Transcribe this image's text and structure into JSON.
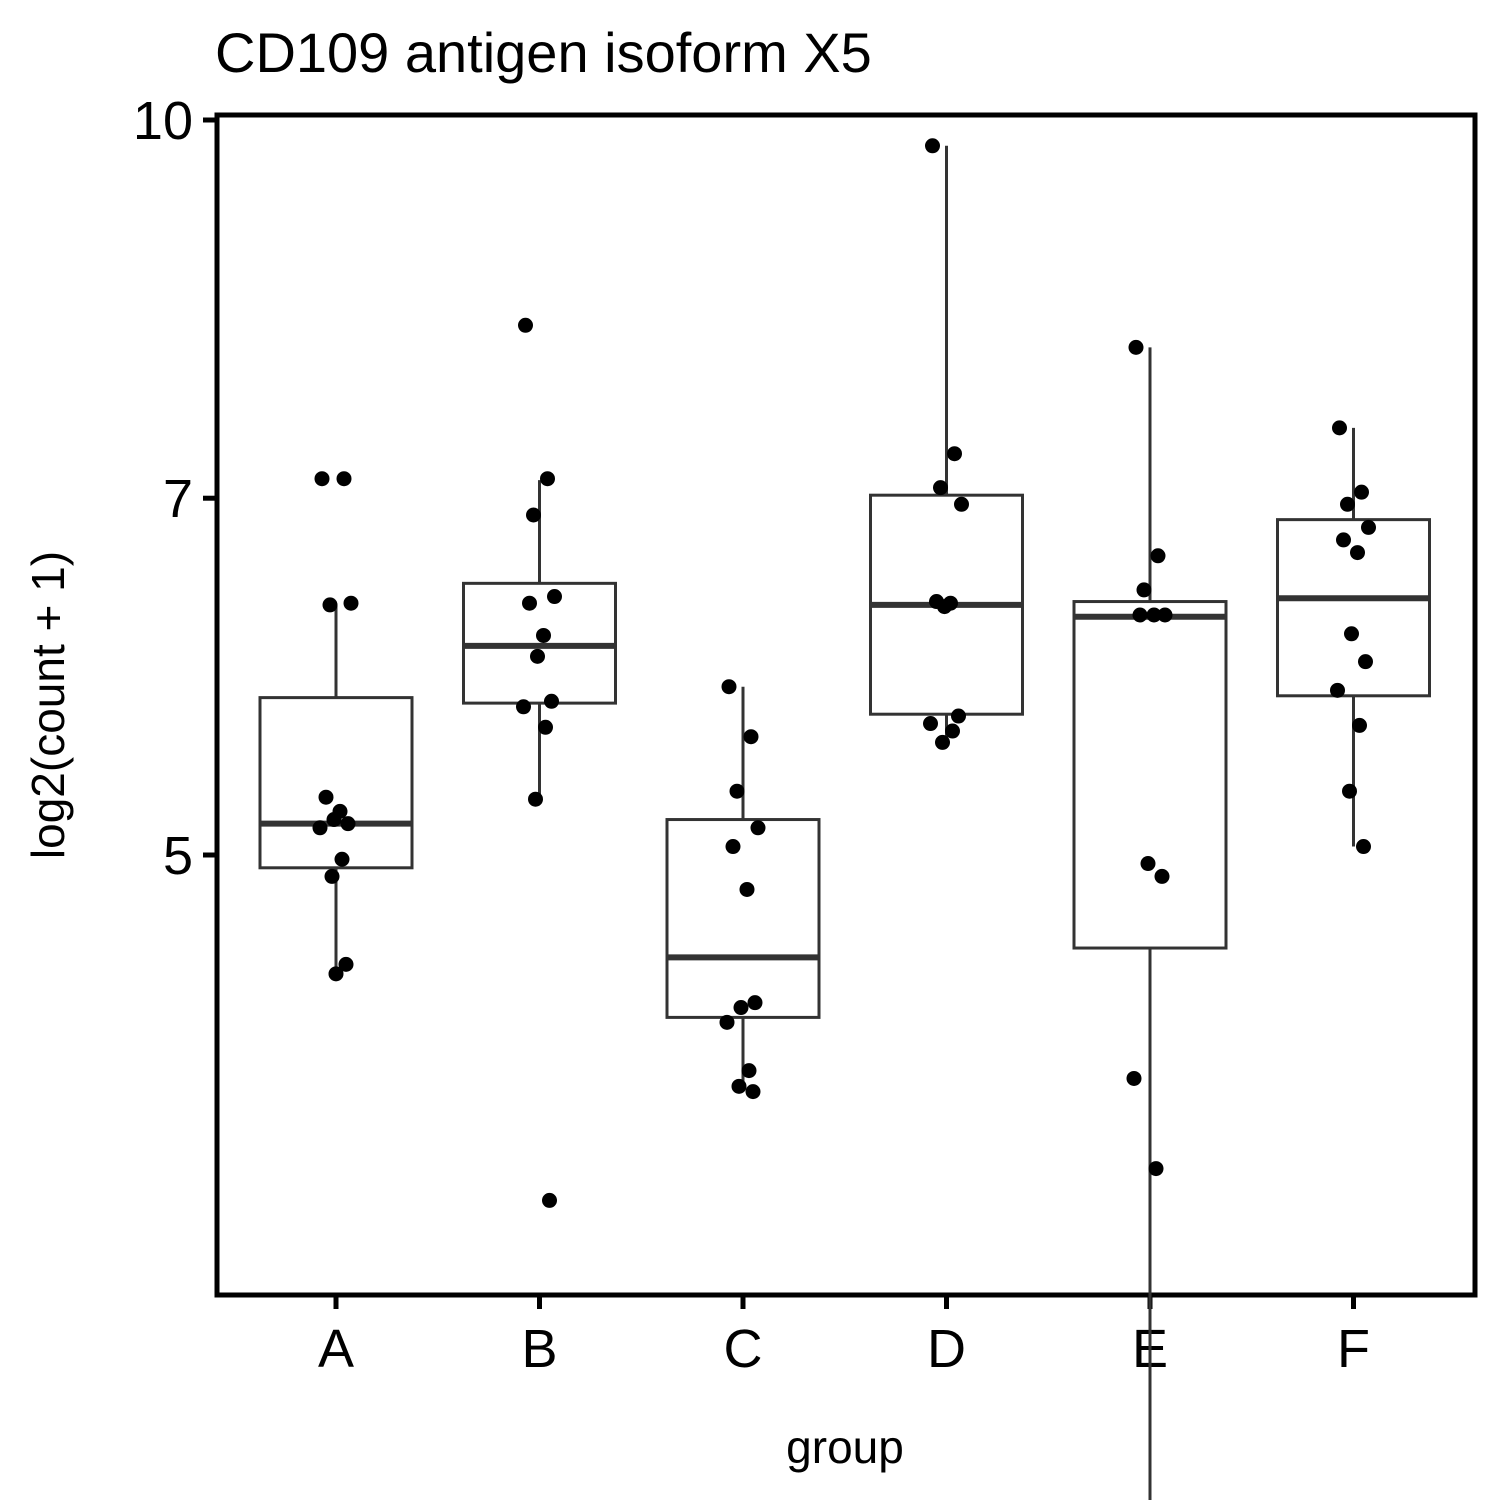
{
  "chart_data": {
    "type": "box",
    "title": "CD109 antigen isoform X5",
    "xlabel": "group",
    "ylabel": "log2(count + 1)",
    "y_ticks": [
      5,
      7,
      10
    ],
    "categories": [
      "A",
      "B",
      "C",
      "D",
      "E",
      "F"
    ],
    "boxes": [
      {
        "group": "A",
        "whisker_low": 4.47,
        "q1": 4.94,
        "median": 5.15,
        "q3": 5.8,
        "whisker_high": 6.33
      },
      {
        "group": "B",
        "whisker_low": 5.27,
        "q1": 5.77,
        "median": 6.09,
        "q3": 6.46,
        "whisker_high": 7.12
      },
      {
        "group": "C",
        "whisker_low": 4.0,
        "q1": 4.29,
        "median": 4.54,
        "q3": 5.17,
        "whisker_high": 5.86
      },
      {
        "group": "D",
        "whisker_low": 5.56,
        "q1": 5.71,
        "median": 6.33,
        "q3": 7.02,
        "whisker_high": 9.76
      },
      {
        "group": "E",
        "whisker_low": 2.67,
        "q1": 4.58,
        "median": 6.26,
        "q3": 6.35,
        "whisker_high": 8.07
      },
      {
        "group": "F",
        "whisker_low": 5.04,
        "q1": 5.81,
        "median": 6.37,
        "q3": 6.86,
        "whisker_high": 7.48
      }
    ],
    "points": [
      {
        "group": "A",
        "values": [
          7.13,
          7.13,
          6.33,
          6.34,
          5.28,
          5.21,
          5.17,
          5.15,
          5.13,
          4.98,
          4.9,
          4.51,
          4.47
        ]
      },
      {
        "group": "B",
        "values": [
          8.24,
          7.13,
          6.89,
          6.38,
          6.34,
          6.15,
          6.03,
          5.78,
          5.75,
          5.64,
          5.27,
          3.61
        ]
      },
      {
        "group": "C",
        "values": [
          5.86,
          5.59,
          5.31,
          5.13,
          5.04,
          4.84,
          4.33,
          4.35,
          4.27,
          4.08,
          4.02,
          4.0
        ]
      },
      {
        "group": "D",
        "values": [
          9.76,
          7.3,
          7.07,
          6.96,
          6.35,
          6.34,
          6.32,
          5.7,
          5.66,
          5.62,
          5.56
        ]
      },
      {
        "group": "E",
        "values": [
          8.07,
          6.63,
          6.42,
          6.27,
          6.27,
          6.27,
          4.96,
          4.9,
          4.05,
          3.72,
          2.67
        ]
      },
      {
        "group": "F",
        "values": [
          7.48,
          7.04,
          6.96,
          6.81,
          6.73,
          6.65,
          6.16,
          6.0,
          5.84,
          5.65,
          5.31,
          5.04
        ]
      }
    ]
  }
}
